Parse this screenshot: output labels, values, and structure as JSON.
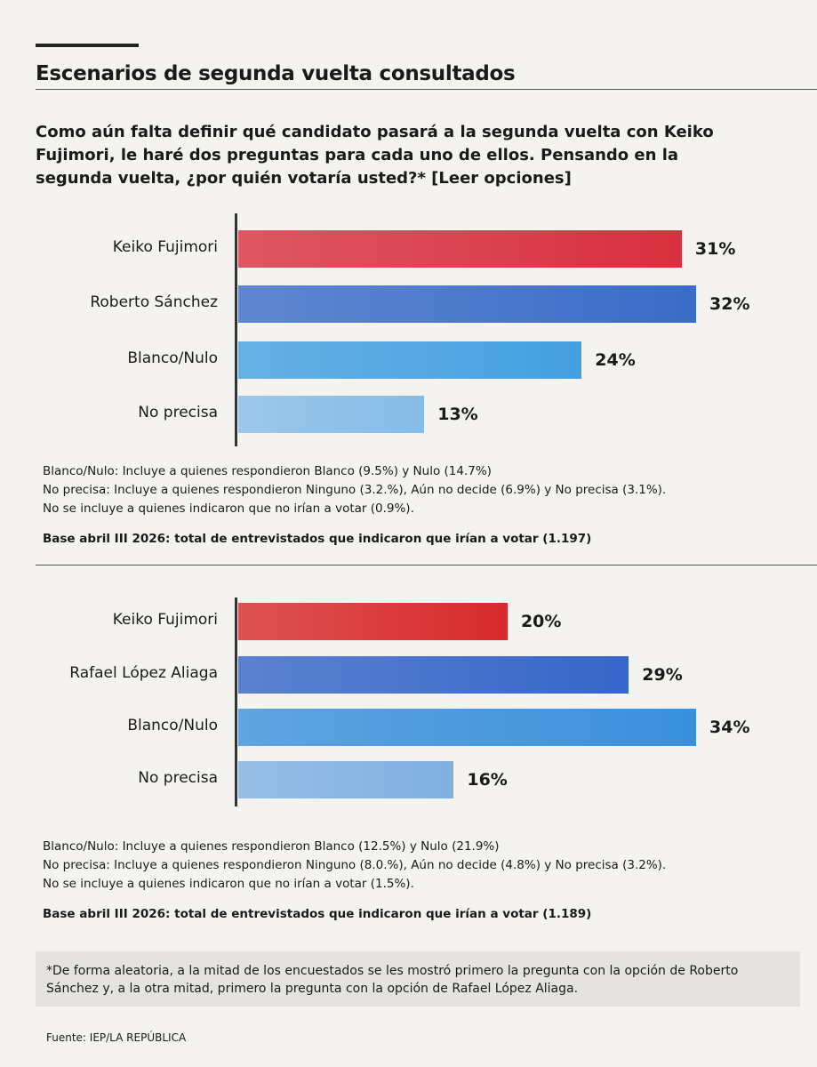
{
  "header": {
    "title": "Escenarios de segunda vuelta consultados",
    "question": "Como aún falta definir qué candidato pasará a la segunda vuelta con Keiko Fujimori, le haré dos preguntas para cada uno de ellos. Pensando en la segunda vuelta, ¿por quién votaría usted?* [Leer opciones]"
  },
  "chart_data": [
    {
      "type": "bar",
      "orientation": "horizontal",
      "categories": [
        "Keiko Fujimori",
        "Roberto Sánchez",
        "Blanco/Nulo",
        "No precisa"
      ],
      "values": [
        31,
        32,
        24,
        13
      ],
      "value_labels": [
        "31%",
        "32%",
        "24%",
        "13%"
      ],
      "colors": [
        "#d8303f",
        "#3a6cc8",
        "#44a0e2",
        "#86bce8"
      ],
      "notes": [
        "Blanco/Nulo: Incluye a quienes respondieron Blanco (9.5%) y Nulo (14.7%)",
        "No precisa: Incluye a quienes respondieron Ninguno (3.2.%), Aún no decide (6.9%) y No precisa (3.1%).",
        "No se incluye a quienes indicaron que no irían a votar (0.9%)."
      ],
      "base": "Base abril III 2026: total de entrevistados que indicaron que irían a votar (1.197)"
    },
    {
      "type": "bar",
      "orientation": "horizontal",
      "categories": [
        "Keiko Fujimori",
        "Rafael López Aliaga",
        "Blanco/Nulo",
        "No precisa"
      ],
      "values": [
        20,
        29,
        34,
        16
      ],
      "value_labels": [
        "20%",
        "29%",
        "34%",
        "16%"
      ],
      "colors": [
        "#d82a2c",
        "#3566c8",
        "#3a90dc",
        "#80b0e2"
      ],
      "notes": [
        "Blanco/Nulo: Incluye a quienes respondieron Blanco (12.5%) y Nulo (21.9%)",
        "No precisa: Incluye a quienes respondieron Ninguno (8.0.%), Aún no decide (4.8%) y No precisa (3.2%).",
        "No se incluye a quienes indicaron que no irían a votar (1.5%)."
      ],
      "base": "Base abril III 2026: total de entrevistados que indicaron que irían a votar (1.189)"
    }
  ],
  "footnote": "*De forma aleatoria, a la mitad de los encuestados se les mostró primero la pregunta con la opción de Roberto Sánchez y, a la otra mitad, primero la pregunta con la opción de Rafael López Aliaga.",
  "source": "Fuente: IEP/LA REPÚBLICA"
}
